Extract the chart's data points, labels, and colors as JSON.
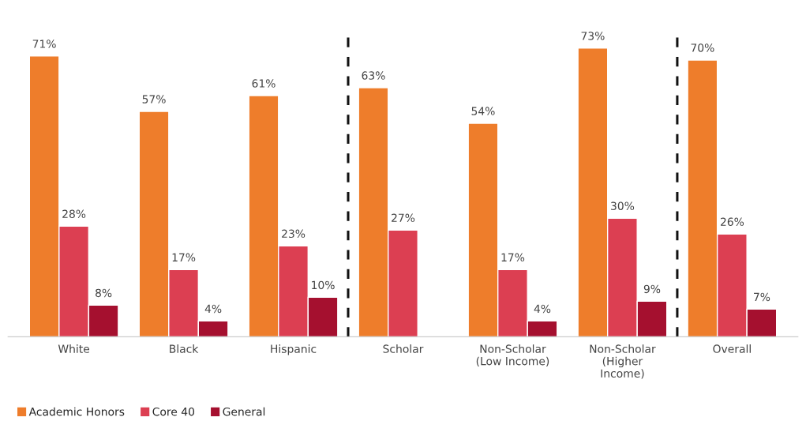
{
  "chart_data": {
    "type": "bar",
    "categories": [
      "White",
      "Black",
      "Hispanic",
      "Scholar",
      "Non-Scholar\n(Low Income)",
      "Non-Scholar\n(Higher\nIncome)",
      "Overall"
    ],
    "series": [
      {
        "name": "Academic Honors",
        "color": "#ee7d2b",
        "values": [
          71,
          57,
          61,
          63,
          54,
          73,
          70
        ],
        "value_labels": [
          "71%",
          "57%",
          "61%",
          "63%",
          "54%",
          "73%",
          "70%"
        ]
      },
      {
        "name": "Core 40",
        "color": "#dc3f52",
        "values": [
          28,
          17,
          23,
          27,
          17,
          30,
          26
        ],
        "value_labels": [
          "28%",
          "17%",
          "23%",
          "27%",
          "17%",
          "30%",
          "26%"
        ]
      },
      {
        "name": "General",
        "color": "#a5102f",
        "values": [
          8,
          4,
          10,
          null,
          4,
          9,
          7
        ],
        "value_labels": [
          "8%",
          "4%",
          "10%",
          null,
          "4%",
          "9%",
          "7%"
        ]
      }
    ],
    "legend": "bottom left",
    "grid": false,
    "tick_labels": "x"
  }
}
